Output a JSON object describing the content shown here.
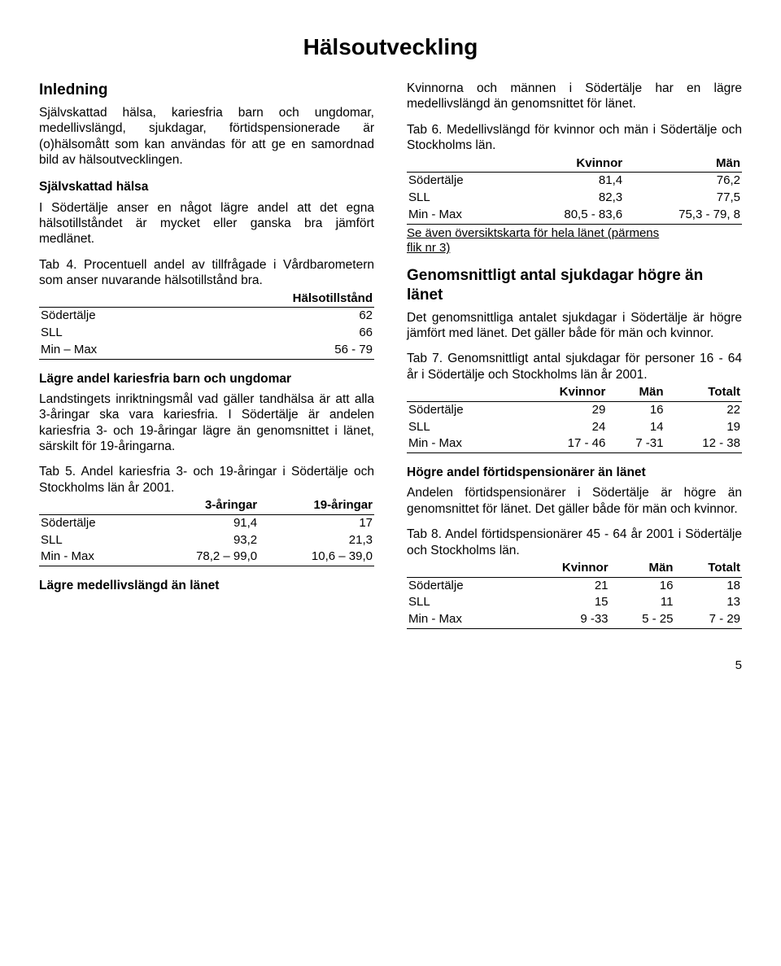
{
  "title": "Hälsoutveckling",
  "left": {
    "inledning_h": "Inledning",
    "inledning_p": "Självskattad hälsa, kariesfria barn och ungdomar, medellivslängd, sjukdagar, förtidspensionerade är (o)hälsomått som kan användas för att ge en samordnad bild av hälsoutvecklingen.",
    "sjalv_h": "Självskattad hälsa",
    "sjalv_p": "I Södertälje anser en något lägre andel att det egna hälsotillståndet är mycket eller ganska bra jämfört medlänet.",
    "tab4_cap": "Tab 4. Procentuell andel av tillfrågade i Vårdbarometern som anser nuvarande hälsotillstånd bra.",
    "tab4": {
      "head": [
        "",
        "Hälsotillstånd"
      ],
      "rows": [
        [
          "Södertälje",
          "62"
        ],
        [
          "SLL",
          "66"
        ],
        [
          "Min – Max",
          "56 - 79"
        ]
      ]
    },
    "karies_h": "Lägre andel kariesfria barn och ungdomar",
    "karies_p": "Landstingets inriktningsmål vad gäller tandhälsa är att alla 3-åringar ska vara kariesfria. I Södertälje är andelen kariesfria 3- och 19-åringar lägre än genomsnittet i länet, särskilt för 19-åringarna.",
    "tab5_cap": "Tab 5. Andel kariesfria 3- och 19-åringar i Södertälje och Stockholms län år 2001.",
    "tab5": {
      "head": [
        "",
        "3-åringar",
        "19-åringar"
      ],
      "rows": [
        [
          "Södertälje",
          "91,4",
          "17"
        ],
        [
          "SLL",
          "93,2",
          "21,3"
        ],
        [
          "Min - Max",
          "78,2 – 99,0",
          "10,6 – 39,0"
        ]
      ]
    },
    "medel_h": "Lägre medellivslängd än länet"
  },
  "right": {
    "intro_p": "Kvinnorna och männen i Södertälje har en lägre medellivslängd än genomsnittet för länet.",
    "tab6_cap": "Tab 6. Medellivslängd för kvinnor och män i Södertälje och Stockholms län.",
    "tab6": {
      "head": [
        "",
        "Kvinnor",
        "Män"
      ],
      "rows": [
        [
          "Södertälje",
          "81,4",
          "76,2"
        ],
        [
          "SLL",
          "82,3",
          "77,5"
        ],
        [
          "Min - Max",
          "80,5 - 83,6",
          "75,3 - 79, 8"
        ]
      ]
    },
    "tab6_note_a": "Se även översiktskarta för hela länet (pärmens",
    "tab6_note_b": "flik nr 3)",
    "sjuk_h": "Genomsnittligt antal sjukdagar högre än länet",
    "sjuk_p": "Det genomsnittliga antalet sjukdagar i Södertälje är högre jämfört med länet. Det gäller både för män och kvinnor.",
    "tab7_cap": "Tab 7. Genomsnittligt antal sjukdagar för personer 16 - 64 år i Södertälje och Stockholms län år 2001.",
    "tab7": {
      "head": [
        "",
        "Kvinnor",
        "Män",
        "Totalt"
      ],
      "rows": [
        [
          "Södertälje",
          "29",
          "16",
          "22"
        ],
        [
          "SLL",
          "24",
          "14",
          "19"
        ],
        [
          "Min - Max",
          "17 - 46",
          "7 -31",
          "12 - 38"
        ]
      ]
    },
    "fortid_h": "Högre andel förtidspensionärer än länet",
    "fortid_p": "Andelen förtidspensionärer i Södertälje är högre än genomsnittet för länet. Det gäller både för män och kvinnor.",
    "tab8_cap": "Tab 8. Andel förtidspensionärer 45 - 64 år 2001 i Södertälje och Stockholms län.",
    "tab8": {
      "head": [
        "",
        "Kvinnor",
        "Män",
        "Totalt"
      ],
      "rows": [
        [
          "Södertälje",
          "21",
          "16",
          "18"
        ],
        [
          "SLL",
          "15",
          "11",
          "13"
        ],
        [
          "Min - Max",
          "9 -33",
          "5 - 25",
          "7 - 29"
        ]
      ]
    }
  },
  "pagenum": "5"
}
